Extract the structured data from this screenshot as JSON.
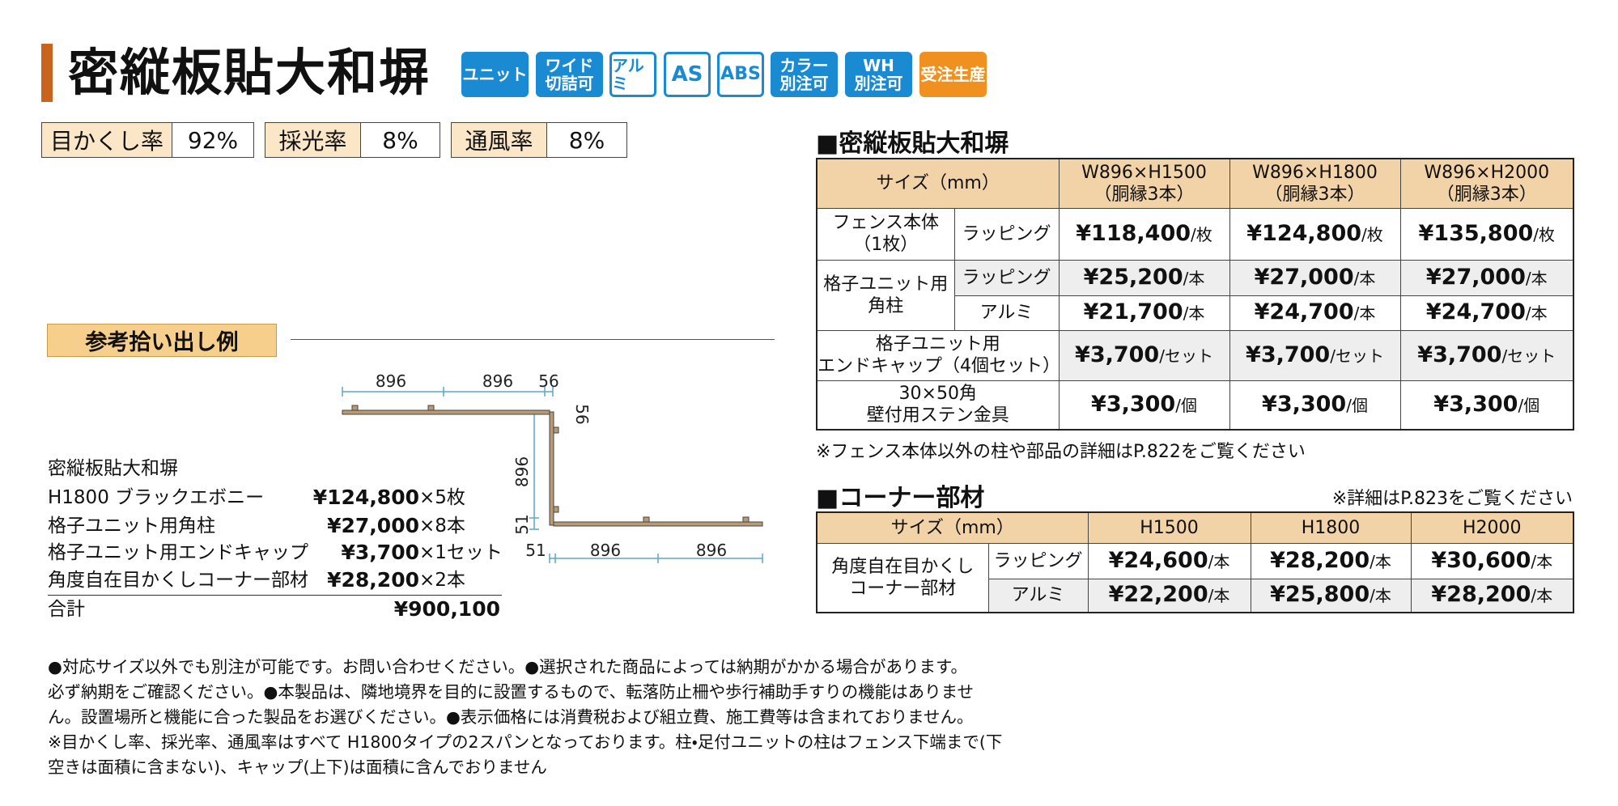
{
  "header": {
    "title": "密縦板貼大和塀",
    "badges": [
      [
        "ユニット"
      ],
      [
        "ワイド",
        "切詰可"
      ],
      [
        "アルミ"
      ],
      [
        "AS"
      ],
      [
        "ABS"
      ],
      [
        "カラー",
        "別注可"
      ],
      [
        "WH",
        "別注可"
      ],
      [
        "受注生産"
      ]
    ]
  },
  "ratios": [
    {
      "label": "目かくし率",
      "value": "92%"
    },
    {
      "label": "採光率",
      "value": "8%"
    },
    {
      "label": "通風率",
      "value": "8%"
    }
  ],
  "example": {
    "heading": "参考拾い出し例",
    "dimensions": {
      "top": [
        "896",
        "896",
        "56"
      ],
      "right": "56",
      "left": [
        "896",
        "51"
      ],
      "bottom": [
        "51",
        "896",
        "896"
      ]
    },
    "product": "密縦板貼大和塀",
    "items": [
      {
        "name": "H1800 ブラックエボニー",
        "price": "¥124,800",
        "qty": "×5枚"
      },
      {
        "name": "格子ユニット用角柱",
        "price": "¥27,000",
        "qty": "×8本"
      },
      {
        "name": "格子ユニット用エンドキャップ",
        "price": "¥3,700",
        "qty": "×1セット"
      },
      {
        "name": "角度自在目かくしコーナー部材",
        "price": "¥28,200",
        "qty": "×2本"
      }
    ],
    "total": {
      "label": "合計",
      "price": "¥900,100"
    }
  },
  "fence_table": {
    "title": "■密縦板貼大和塀",
    "size_label": "サイズ（mm）",
    "columns": [
      [
        "W896×H1500",
        "（胴縁3本）"
      ],
      [
        "W896×H1800",
        "（胴縁3本）"
      ],
      [
        "W896×H2000",
        "（胴縁3本）"
      ]
    ],
    "rows": [
      {
        "item": [
          "フェンス本体",
          "（1枚）"
        ],
        "finish": "ラッピング",
        "unit": "/枚",
        "prices": [
          "¥118,400",
          "¥124,800",
          "¥135,800"
        ]
      },
      {
        "item": [
          "格子ユニット用",
          "角柱"
        ],
        "finish": "ラッピング",
        "unit": "/本",
        "prices": [
          "¥25,200",
          "¥27,000",
          "¥27,000"
        ]
      },
      {
        "finish": "アルミ",
        "unit": "/本",
        "prices": [
          "¥21,700",
          "¥24,700",
          "¥24,700"
        ]
      },
      {
        "item": [
          "格子ユニット用",
          "エンドキャップ（4個セット）"
        ],
        "unit": "/セット",
        "prices": [
          "¥3,700",
          "¥3,700",
          "¥3,700"
        ]
      },
      {
        "item": [
          "30×50角",
          "壁付用ステン金具"
        ],
        "unit": "/個",
        "prices": [
          "¥3,300",
          "¥3,300",
          "¥3,300"
        ]
      }
    ],
    "note": "※フェンス本体以外の柱や部品の詳細はP.822をご覧ください"
  },
  "corner_table": {
    "title": "■コーナー部材",
    "note": "※詳細はP.823をご覧ください",
    "size_label": "サイズ（mm）",
    "columns": [
      "H1500",
      "H1800",
      "H2000"
    ],
    "item": [
      "角度自在目かくし",
      "コーナー部材"
    ],
    "rows": [
      {
        "finish": "ラッピング",
        "unit": "/本",
        "prices": [
          "¥24,600",
          "¥28,200",
          "¥30,600"
        ]
      },
      {
        "finish": "アルミ",
        "unit": "/本",
        "prices": [
          "¥22,200",
          "¥25,800",
          "¥28,200"
        ]
      }
    ]
  },
  "footer": {
    "lines": [
      "●対応サイズ以外でも別注が可能です。お問い合わせください。●選択された商品によっては納期がかかる場合があります。",
      "必ず納期をご確認ください。●本製品は、隣地境界を目的に設置するもので、転落防止柵や歩行補助手すりの機能はありませ",
      "ん。設置場所と機能に合った製品をお選びください。●表示価格には消費税および組立費、施工費等は含まれておりません。",
      "※目かくし率、採光率、通風率はすべて H1800タイプの2スパンとなっております。柱・足付ユニットの柱はフェンス下端まで(下",
      "空きは面積に含まない)、キャップ(上下)は面積に含んでおりません"
    ]
  }
}
